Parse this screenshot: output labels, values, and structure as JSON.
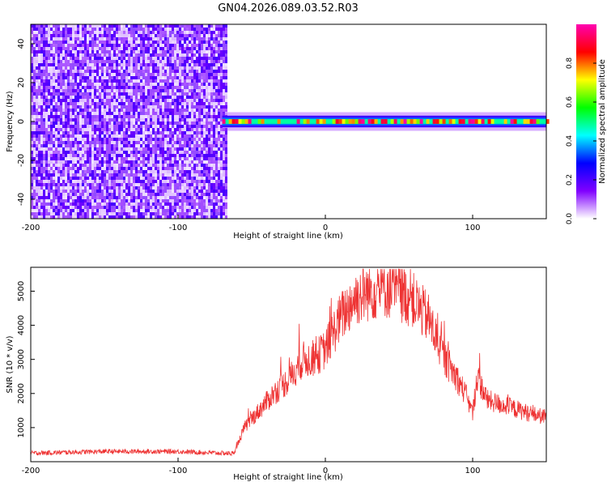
{
  "figure": {
    "title": "GN04.2026.089.03.52.R03"
  },
  "chart_data": [
    {
      "type": "heatmap",
      "xlabel": "Height of straight line (km)",
      "ylabel": "Frequency (Hz)",
      "xlim": [
        -200,
        150
      ],
      "ylim": [
        -50,
        50
      ],
      "xticks": [
        -200,
        -100,
        0,
        100
      ],
      "yticks": [
        -40,
        -20,
        0,
        20,
        40
      ],
      "colorbar": {
        "label": "Normalized spectral amplitude",
        "range": [
          0,
          1
        ],
        "ticks": [
          0.0,
          0.2,
          0.4,
          0.6,
          0.8
        ],
        "colormap": [
          "#ffffff",
          "#8000ff",
          "#0000ff",
          "#00ffff",
          "#00ff00",
          "#ffff00",
          "#ff0000",
          "#ff00b0"
        ]
      },
      "noise_region": {
        "x_range": [
          -200,
          -68
        ],
        "y_range": [
          -50,
          50
        ],
        "level": 0.3
      },
      "signal_band": {
        "x_range": [
          -70,
          150
        ],
        "center_freq": 0,
        "half_width": 3
      }
    },
    {
      "type": "line",
      "xlabel": "Height of straight line (km)",
      "ylabel": "SNR (10 * v/v)",
      "xlim": [
        -200,
        150
      ],
      "ylim": [
        0,
        5700
      ],
      "xticks": [
        -200,
        -100,
        0,
        100
      ],
      "yticks": [
        1000,
        2000,
        3000,
        4000,
        5000
      ],
      "color": "#ee3333",
      "envelope": {
        "x": [
          -200,
          -150,
          -100,
          -70,
          -62,
          -55,
          -45,
          -35,
          -25,
          -15,
          -10,
          -5,
          0,
          10,
          20,
          30,
          40,
          50,
          60,
          70,
          80,
          90,
          95,
          100,
          103,
          110,
          125,
          140,
          150
        ],
        "y": [
          250,
          300,
          300,
          250,
          240,
          1000,
          1500,
          2000,
          2400,
          3000,
          3000,
          3100,
          3300,
          4200,
          4800,
          5000,
          5100,
          5000,
          4700,
          4200,
          3100,
          2400,
          2000,
          1400,
          2500,
          1800,
          1600,
          1400,
          1300
        ]
      }
    }
  ]
}
